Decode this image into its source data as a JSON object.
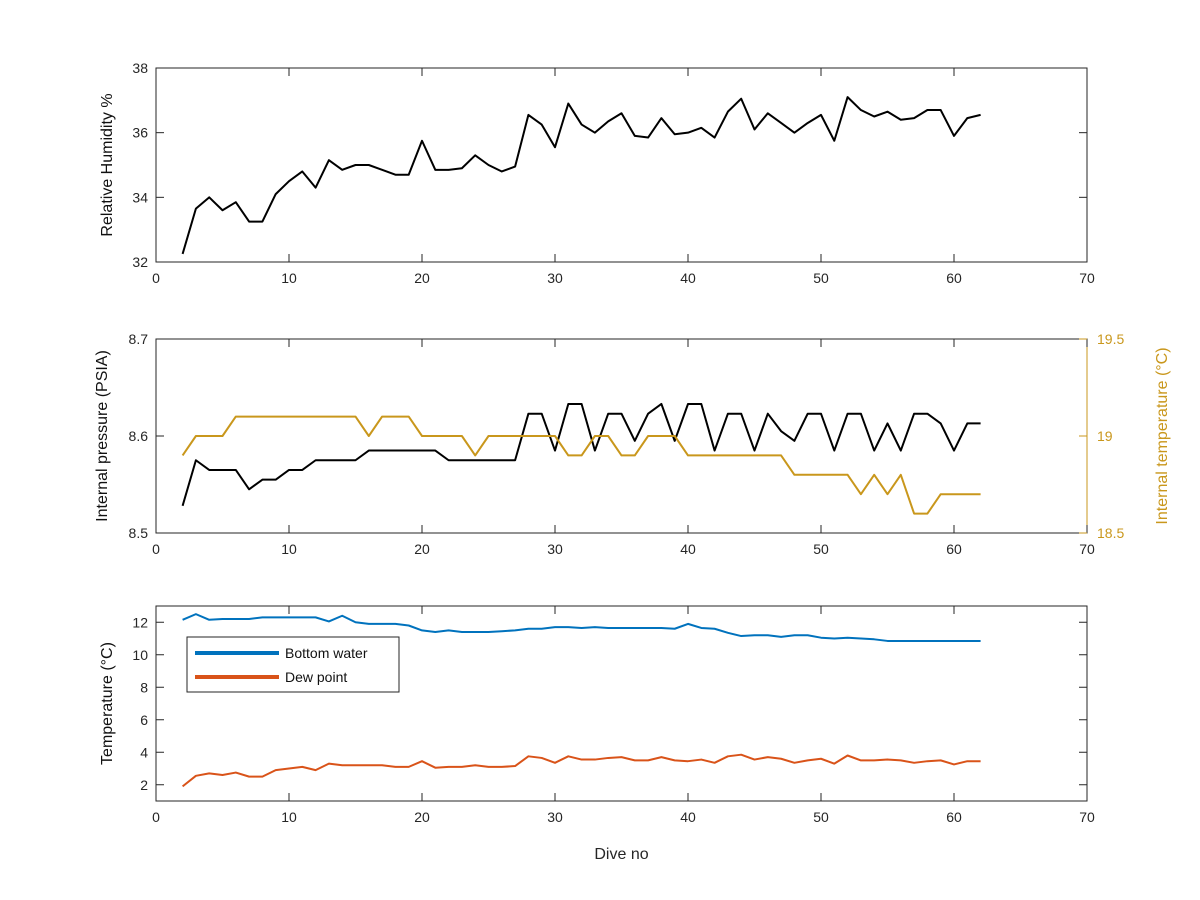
{
  "figure": {
    "xlabel": "Dive no"
  },
  "chart_data": [
    {
      "type": "line",
      "title": "",
      "xlabel": "",
      "ylabel": "Relative Humidity %",
      "xlim": [
        0,
        70
      ],
      "ylim": [
        32,
        38
      ],
      "xticks": [
        0,
        10,
        20,
        30,
        40,
        50,
        60,
        70
      ],
      "yticks": [
        32,
        34,
        36,
        38
      ],
      "grid": false,
      "series": [
        {
          "color": "#000000",
          "x": [
            2,
            3,
            4,
            5,
            6,
            7,
            8,
            9,
            10,
            11,
            12,
            13,
            14,
            15,
            16,
            17,
            18,
            19,
            20,
            21,
            22,
            23,
            24,
            25,
            26,
            27,
            28,
            29,
            30,
            31,
            32,
            33,
            34,
            35,
            36,
            37,
            38,
            39,
            40,
            41,
            42,
            43,
            44,
            45,
            46,
            47,
            48,
            49,
            50,
            51,
            52,
            53,
            54,
            55,
            56,
            57,
            58,
            59,
            60,
            61,
            62
          ],
          "y": [
            32.25,
            33.65,
            34.0,
            33.6,
            33.85,
            33.25,
            33.25,
            34.1,
            34.5,
            34.8,
            34.3,
            35.15,
            34.85,
            35.0,
            35.0,
            34.85,
            34.7,
            34.7,
            35.75,
            34.85,
            34.85,
            34.9,
            35.3,
            35.0,
            34.8,
            34.95,
            36.55,
            36.25,
            35.55,
            36.9,
            36.25,
            36.0,
            36.35,
            36.6,
            35.9,
            35.85,
            36.45,
            35.95,
            36.0,
            36.15,
            35.85,
            36.65,
            37.05,
            36.1,
            36.6,
            36.3,
            36.0,
            36.3,
            36.55,
            35.75,
            37.1,
            36.7,
            36.5,
            36.65,
            36.4,
            36.45,
            36.7,
            36.7,
            35.9,
            36.45,
            36.55
          ]
        }
      ]
    },
    {
      "type": "line",
      "title": "",
      "xlabel": "",
      "ylabel": "Internal pressure (PSIA)",
      "ylabel_right": "Internal temperature (°C)",
      "xlim": [
        0,
        70
      ],
      "ylim": [
        8.5,
        8.7
      ],
      "ylim_right": [
        18.5,
        19.5
      ],
      "xticks": [
        0,
        10,
        20,
        30,
        40,
        50,
        60,
        70
      ],
      "yticks": [
        8.5,
        8.6,
        8.7
      ],
      "yticks_right": [
        18.5,
        19,
        19.5
      ],
      "grid": false,
      "series": [
        {
          "axis": "left",
          "color": "#000000",
          "x": [
            2,
            3,
            4,
            5,
            6,
            7,
            8,
            9,
            10,
            11,
            12,
            13,
            14,
            15,
            16,
            17,
            18,
            19,
            20,
            21,
            22,
            23,
            24,
            25,
            26,
            27,
            28,
            29,
            30,
            31,
            32,
            33,
            34,
            35,
            36,
            37,
            38,
            39,
            40,
            41,
            42,
            43,
            44,
            45,
            46,
            47,
            48,
            49,
            50,
            51,
            52,
            53,
            54,
            55,
            56,
            57,
            58,
            59,
            60,
            61,
            62
          ],
          "y": [
            8.528,
            8.575,
            8.565,
            8.565,
            8.565,
            8.545,
            8.555,
            8.555,
            8.565,
            8.565,
            8.575,
            8.575,
            8.575,
            8.575,
            8.585,
            8.585,
            8.585,
            8.585,
            8.585,
            8.585,
            8.575,
            8.575,
            8.575,
            8.575,
            8.575,
            8.575,
            8.623,
            8.623,
            8.585,
            8.633,
            8.633,
            8.585,
            8.623,
            8.623,
            8.595,
            8.623,
            8.633,
            8.595,
            8.633,
            8.633,
            8.585,
            8.623,
            8.623,
            8.585,
            8.623,
            8.605,
            8.595,
            8.623,
            8.623,
            8.585,
            8.623,
            8.623,
            8.585,
            8.613,
            8.585,
            8.623,
            8.623,
            8.613,
            8.585,
            8.613,
            8.613
          ]
        },
        {
          "axis": "right",
          "color": "#C9971C",
          "x": [
            2,
            3,
            4,
            5,
            6,
            7,
            8,
            9,
            10,
            11,
            12,
            13,
            14,
            15,
            16,
            17,
            18,
            19,
            20,
            21,
            22,
            23,
            24,
            25,
            26,
            27,
            28,
            29,
            30,
            31,
            32,
            33,
            34,
            35,
            36,
            37,
            38,
            39,
            40,
            41,
            42,
            43,
            44,
            45,
            46,
            47,
            48,
            49,
            50,
            51,
            52,
            53,
            54,
            55,
            56,
            57,
            58,
            59,
            60,
            61,
            62
          ],
          "y": [
            18.9,
            19.0,
            19.0,
            19.0,
            19.1,
            19.1,
            19.1,
            19.1,
            19.1,
            19.1,
            19.1,
            19.1,
            19.1,
            19.1,
            19.0,
            19.1,
            19.1,
            19.1,
            19.0,
            19.0,
            19.0,
            19.0,
            18.9,
            19.0,
            19.0,
            19.0,
            19.0,
            19.0,
            19.0,
            18.9,
            18.9,
            19.0,
            19.0,
            18.9,
            18.9,
            19.0,
            19.0,
            19.0,
            18.9,
            18.9,
            18.9,
            18.9,
            18.9,
            18.9,
            18.9,
            18.9,
            18.8,
            18.8,
            18.8,
            18.8,
            18.8,
            18.7,
            18.8,
            18.7,
            18.8,
            18.6,
            18.6,
            18.7,
            18.7,
            18.7,
            18.7
          ]
        }
      ]
    },
    {
      "type": "line",
      "title": "",
      "xlabel": "Dive no",
      "ylabel": "Temperature (°C)",
      "xlim": [
        0,
        70
      ],
      "ylim": [
        1,
        13
      ],
      "xticks": [
        0,
        10,
        20,
        30,
        40,
        50,
        60,
        70
      ],
      "yticks": [
        2,
        4,
        6,
        8,
        10,
        12
      ],
      "grid": false,
      "legend": "top-left",
      "series": [
        {
          "name": "Bottom water",
          "color": "#0072BD",
          "x": [
            2,
            3,
            4,
            5,
            6,
            7,
            8,
            9,
            10,
            11,
            12,
            13,
            14,
            15,
            16,
            17,
            18,
            19,
            20,
            21,
            22,
            23,
            24,
            25,
            26,
            27,
            28,
            29,
            30,
            31,
            32,
            33,
            34,
            35,
            36,
            37,
            38,
            39,
            40,
            41,
            42,
            43,
            44,
            45,
            46,
            47,
            48,
            49,
            50,
            51,
            52,
            53,
            54,
            55,
            56,
            57,
            58,
            59,
            60,
            61,
            62
          ],
          "y": [
            12.15,
            12.5,
            12.15,
            12.2,
            12.2,
            12.2,
            12.3,
            12.3,
            12.3,
            12.3,
            12.3,
            12.05,
            12.4,
            12.0,
            11.9,
            11.9,
            11.9,
            11.8,
            11.5,
            11.4,
            11.5,
            11.4,
            11.4,
            11.4,
            11.45,
            11.5,
            11.6,
            11.6,
            11.7,
            11.7,
            11.65,
            11.7,
            11.65,
            11.65,
            11.65,
            11.65,
            11.65,
            11.6,
            11.9,
            11.65,
            11.6,
            11.35,
            11.15,
            11.2,
            11.2,
            11.1,
            11.2,
            11.2,
            11.05,
            11.0,
            11.05,
            11.0,
            10.95,
            10.85,
            10.85,
            10.85,
            10.85,
            10.85,
            10.85,
            10.85,
            10.85
          ]
        },
        {
          "name": "Dew point",
          "color": "#D95319",
          "x": [
            2,
            3,
            4,
            5,
            6,
            7,
            8,
            9,
            10,
            11,
            12,
            13,
            14,
            15,
            16,
            17,
            18,
            19,
            20,
            21,
            22,
            23,
            24,
            25,
            26,
            27,
            28,
            29,
            30,
            31,
            32,
            33,
            34,
            35,
            36,
            37,
            38,
            39,
            40,
            41,
            42,
            43,
            44,
            45,
            46,
            47,
            48,
            49,
            50,
            51,
            52,
            53,
            54,
            55,
            56,
            57,
            58,
            59,
            60,
            61,
            62
          ],
          "y": [
            1.9,
            2.55,
            2.7,
            2.6,
            2.75,
            2.5,
            2.5,
            2.9,
            3.0,
            3.1,
            2.9,
            3.3,
            3.2,
            3.2,
            3.2,
            3.2,
            3.1,
            3.1,
            3.45,
            3.05,
            3.1,
            3.1,
            3.2,
            3.1,
            3.1,
            3.15,
            3.75,
            3.65,
            3.35,
            3.75,
            3.55,
            3.55,
            3.65,
            3.7,
            3.5,
            3.5,
            3.7,
            3.5,
            3.45,
            3.55,
            3.35,
            3.75,
            3.85,
            3.55,
            3.7,
            3.6,
            3.35,
            3.5,
            3.6,
            3.3,
            3.8,
            3.5,
            3.5,
            3.55,
            3.5,
            3.35,
            3.45,
            3.5,
            3.25,
            3.45,
            3.45
          ]
        }
      ]
    }
  ]
}
